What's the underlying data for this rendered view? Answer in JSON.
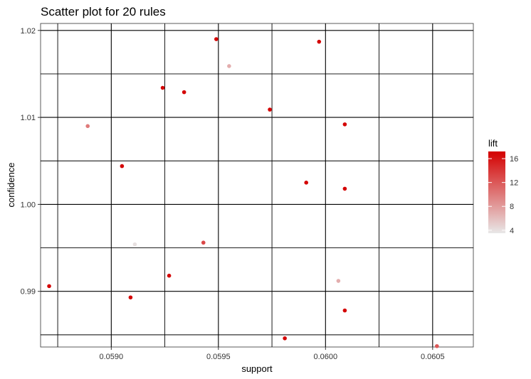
{
  "chart_data": {
    "type": "scatter",
    "title": "Scatter plot for 20 rules",
    "xlabel": "support",
    "ylabel": "confidence",
    "xlim": [
      0.05867,
      0.06069
    ],
    "ylim": [
      0.9836,
      1.0208
    ],
    "x_ticks": [
      0.059,
      0.0595,
      0.06,
      0.0605
    ],
    "x_tick_labels": [
      "0.0590",
      "0.0595",
      "0.0600",
      "0.0605"
    ],
    "y_ticks": [
      0.99,
      1.0,
      1.01,
      1.02
    ],
    "y_tick_labels": [
      "0.99",
      "1.00",
      "1.01",
      "1.02"
    ],
    "grid": true,
    "color_scale": {
      "name": "lift",
      "min": 3.5,
      "max": 17.2,
      "ticks": [
        4,
        8,
        12,
        16
      ],
      "tick_labels": [
        "4",
        "8",
        "12",
        "16"
      ],
      "low_color": "#e8e8e8",
      "high_color": "#d40000"
    },
    "legend_position": "right",
    "points": [
      {
        "x": 0.05949,
        "y": 1.019,
        "lift": 17
      },
      {
        "x": 0.05997,
        "y": 1.0187,
        "lift": 17
      },
      {
        "x": 0.05955,
        "y": 1.0159,
        "lift": 7
      },
      {
        "x": 0.05924,
        "y": 1.0134,
        "lift": 17
      },
      {
        "x": 0.05934,
        "y": 1.0129,
        "lift": 17
      },
      {
        "x": 0.05974,
        "y": 1.0109,
        "lift": 17
      },
      {
        "x": 0.06009,
        "y": 1.0092,
        "lift": 17
      },
      {
        "x": 0.05889,
        "y": 1.009,
        "lift": 10
      },
      {
        "x": 0.05905,
        "y": 1.0044,
        "lift": 17
      },
      {
        "x": 0.05991,
        "y": 1.0025,
        "lift": 17
      },
      {
        "x": 0.06009,
        "y": 1.0018,
        "lift": 17
      },
      {
        "x": 0.05943,
        "y": 0.9956,
        "lift": 13
      },
      {
        "x": 0.05911,
        "y": 0.9954,
        "lift": 4
      },
      {
        "x": 0.05927,
        "y": 0.9918,
        "lift": 17
      },
      {
        "x": 0.06006,
        "y": 0.9912,
        "lift": 7
      },
      {
        "x": 0.05871,
        "y": 0.9906,
        "lift": 17
      },
      {
        "x": 0.05909,
        "y": 0.9893,
        "lift": 17
      },
      {
        "x": 0.06009,
        "y": 0.9878,
        "lift": 17
      },
      {
        "x": 0.05981,
        "y": 0.9846,
        "lift": 17
      },
      {
        "x": 0.06052,
        "y": 0.9837,
        "lift": 12
      }
    ]
  }
}
